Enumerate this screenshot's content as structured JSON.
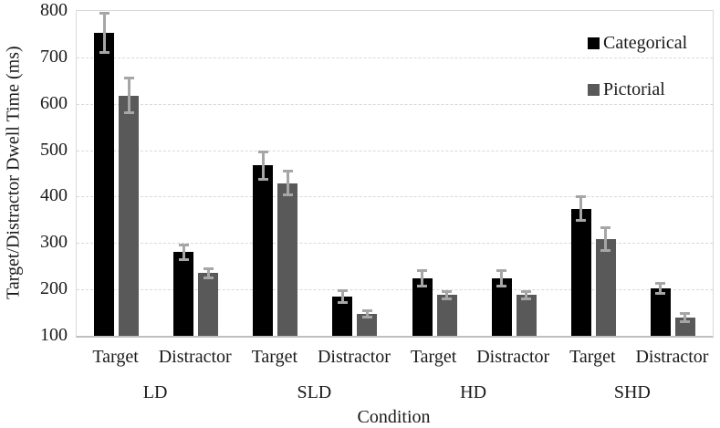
{
  "chart_data": {
    "type": "bar",
    "title": "",
    "xlabel": "Condition",
    "ylabel": "Target/Distractor Dwell Time (ms)",
    "ylim": [
      100,
      800
    ],
    "ytick_step": 100,
    "yticks": [
      800,
      700,
      600,
      500,
      400,
      300,
      200,
      100
    ],
    "grid": "horizontal-dashed",
    "gridline_color": "#d9d9d9",
    "axis_line_color": "#bfbfbf",
    "error_bar_color": "#a6a6a6",
    "legend_position": "top-right-inside",
    "conditions": [
      "LD",
      "SLD",
      "HD",
      "SHD"
    ],
    "categories": [
      "Target",
      "Distractor",
      "Target",
      "Distractor",
      "Target",
      "Distractor",
      "Target",
      "Distractor"
    ],
    "series": [
      {
        "name": "Categorical",
        "color": "#000000",
        "values": [
          753,
          280,
          467,
          184,
          224,
          224,
          374,
          203
        ],
        "errors": [
          44,
          16,
          30,
          14,
          18,
          18,
          27,
          12
        ]
      },
      {
        "name": "Pictorial",
        "color": "#595959",
        "values": [
          618,
          235,
          429,
          148,
          188,
          188,
          308,
          139
        ],
        "errors": [
          38,
          11,
          26,
          8,
          9,
          9,
          26,
          10
        ]
      }
    ]
  }
}
